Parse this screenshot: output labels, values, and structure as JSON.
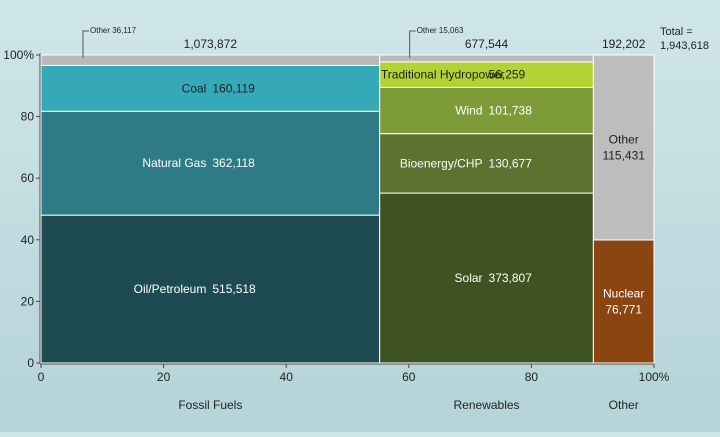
{
  "chart_data": {
    "type": "marimekko",
    "title": "",
    "xlabel": "",
    "ylabel": "",
    "ylim": [
      0,
      100
    ],
    "xlim": [
      0,
      100
    ],
    "y_ticks": [
      "0",
      "20",
      "40",
      "60",
      "80",
      "100%"
    ],
    "x_ticks": [
      "0",
      "20",
      "40",
      "60",
      "80",
      "100%"
    ],
    "total_label": "Total =",
    "total_value": "1,943,618",
    "columns": [
      {
        "category": "Fossil Fuels",
        "total": "1,073,872",
        "total_value": 1073872,
        "other_callout": "Other 36,117",
        "segments": [
          {
            "name": "Oil/Petroleum",
            "value": 515518,
            "value_label": "515,518",
            "color": "#1e4a52",
            "text_color": "#ffffff"
          },
          {
            "name": "Natural Gas",
            "value": 362118,
            "value_label": "362,118",
            "color": "#2e7a86",
            "text_color": "#ffffff"
          },
          {
            "name": "Coal",
            "value": 160119,
            "value_label": "160,119",
            "color": "#35a9b8",
            "text_color": "#1f1f1f"
          },
          {
            "name": "Other",
            "value": 36117,
            "value_label": "",
            "color": "#b9b9b9",
            "text_color": "#1f1f1f"
          }
        ]
      },
      {
        "category": "Renewables",
        "total": "677,544",
        "total_value": 677544,
        "other_callout": "Other 15,063",
        "segments": [
          {
            "name": "Solar",
            "value": 373807,
            "value_label": "373,807",
            "color": "#3f5221",
            "text_color": "#ffffff"
          },
          {
            "name": "Bioenergy/CHP",
            "value": 130677,
            "value_label": "130,677",
            "color": "#5b7230",
            "text_color": "#ffffff"
          },
          {
            "name": "Wind",
            "value": 101738,
            "value_label": "101,738",
            "color": "#7e9b3a",
            "text_color": "#ffffff"
          },
          {
            "name": "Traditional Hydropower",
            "value": 56259,
            "value_label": "56,259",
            "color": "#b3d334",
            "text_color": "#1f1f1f"
          },
          {
            "name": "Other",
            "value": 15063,
            "value_label": "",
            "color": "#b9b9b9",
            "text_color": "#1f1f1f"
          }
        ]
      },
      {
        "category": "Other",
        "total": "192,202",
        "total_value": 192202,
        "other_callout": "",
        "segments": [
          {
            "name": "Nuclear",
            "value": 76771,
            "value_label": "76,771",
            "color": "#8b4513",
            "text_color": "#ffffff"
          },
          {
            "name": "Other",
            "value": 115431,
            "value_label": "115,431",
            "color": "#bdbdbd",
            "text_color": "#1f1f1f"
          }
        ]
      }
    ]
  }
}
